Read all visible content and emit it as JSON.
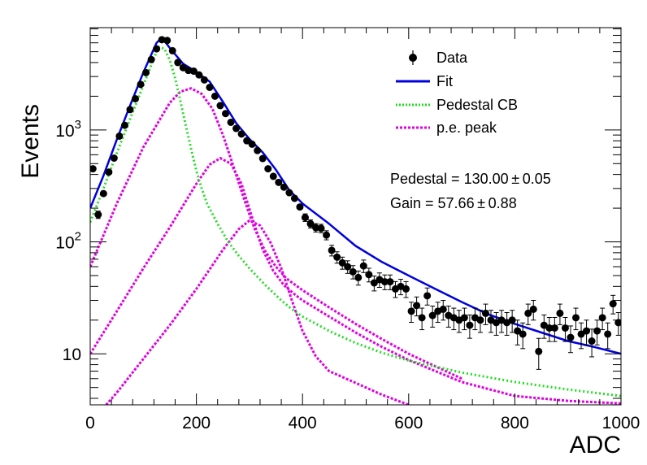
{
  "chart_data": {
    "type": "scatter",
    "title": "",
    "xlabel": "ADC",
    "ylabel": "Events",
    "xlim": [
      0,
      1000
    ],
    "ylim": [
      3.5,
      8200
    ],
    "log_y": true,
    "grid": false,
    "x_ticks": [
      {
        "value": 0,
        "label": "0"
      },
      {
        "value": 200,
        "label": "200"
      },
      {
        "value": 400,
        "label": "400"
      },
      {
        "value": 600,
        "label": "600"
      },
      {
        "value": 800,
        "label": "800"
      },
      {
        "value": 1000,
        "label": "1000"
      }
    ],
    "y_ticks": [
      {
        "value": 10,
        "base": "10",
        "exp": ""
      },
      {
        "value": 100,
        "base": "10",
        "exp": "2"
      },
      {
        "value": 1000,
        "base": "10",
        "exp": "3"
      }
    ],
    "legend": {
      "position": "top-right",
      "entries": [
        {
          "label": "Data",
          "kind": "marker"
        },
        {
          "label": "Fit",
          "kind": "fit"
        },
        {
          "label": "Pedestal CB",
          "kind": "pedestal"
        },
        {
          "label": "p.e. peak",
          "kind": "pe"
        }
      ]
    },
    "annotations": [
      "Pedestal = 130.00 ± 0.05",
      "Gain = 57.66 ± 0.88"
    ],
    "colors": {
      "data": "#000000",
      "fit": "#0000e0",
      "pedestal": "#22dd22",
      "pe": "#e000e0"
    },
    "series": [
      {
        "name": "Data",
        "kind": "data",
        "x": [
          5,
          15,
          25,
          35,
          45,
          55,
          65,
          75,
          85,
          95,
          105,
          115,
          125,
          135,
          145,
          155,
          165,
          175,
          185,
          195,
          205,
          215,
          225,
          235,
          245,
          255,
          265,
          275,
          285,
          295,
          305,
          315,
          325,
          335,
          345,
          355,
          365,
          375,
          385,
          395,
          405,
          415,
          425,
          435,
          445,
          455,
          465,
          475,
          485,
          495,
          505,
          515,
          525,
          535,
          545,
          555,
          565,
          575,
          585,
          595,
          605,
          615,
          625,
          635,
          645,
          655,
          665,
          675,
          685,
          695,
          705,
          715,
          725,
          735,
          745,
          755,
          765,
          775,
          785,
          795,
          805,
          815,
          825,
          835,
          845,
          855,
          865,
          875,
          885,
          895,
          905,
          915,
          925,
          935,
          945,
          955,
          965,
          975,
          985,
          995
        ],
        "y": [
          450,
          175,
          270,
          420,
          560,
          880,
          1100,
          1520,
          1900,
          2550,
          3250,
          4250,
          5300,
          6400,
          6300,
          5100,
          4000,
          3600,
          3400,
          3350,
          3100,
          2800,
          2400,
          2000,
          1650,
          1400,
          1170,
          1030,
          920,
          800,
          745,
          655,
          555,
          450,
          385,
          340,
          308,
          275,
          245,
          205,
          165,
          145,
          134,
          132,
          115,
          84,
          73,
          65,
          60,
          54,
          48,
          61,
          51,
          43,
          46,
          44,
          44,
          38,
          40,
          38,
          24,
          27,
          21,
          33,
          22,
          24,
          25,
          22,
          21,
          20,
          21,
          18,
          21,
          20,
          23,
          20,
          19,
          20,
          19,
          20,
          16,
          15,
          23,
          25,
          10.5,
          18,
          17,
          17,
          23,
          17,
          14,
          21,
          15,
          16,
          13,
          16,
          21,
          15,
          28,
          19
        ]
      },
      {
        "name": "Fit",
        "kind": "fit",
        "x": [
          0,
          25,
          50,
          75,
          100,
          125,
          135,
          150,
          175,
          200,
          225,
          250,
          275,
          300,
          325,
          350,
          375,
          400,
          450,
          500,
          550,
          600,
          650,
          700,
          750,
          800,
          850,
          900,
          950,
          1000
        ],
        "y": [
          200,
          390,
          820,
          1650,
          3250,
          6000,
          6700,
          5400,
          3900,
          3300,
          2700,
          1780,
          1150,
          830,
          630,
          440,
          290,
          220,
          145,
          92,
          66,
          50,
          38,
          29,
          22.5,
          18.5,
          15.5,
          13,
          11.5,
          10
        ]
      },
      {
        "name": "Pedestal CB",
        "kind": "pedestal",
        "x": [
          0,
          25,
          50,
          75,
          100,
          125,
          130,
          140,
          150,
          160,
          170,
          180,
          190,
          200,
          210,
          220,
          240,
          260,
          280,
          300,
          320,
          330,
          340,
          360,
          380,
          400,
          450,
          500,
          550,
          600,
          700,
          800,
          900,
          1000
        ],
        "y": [
          150,
          300,
          620,
          1250,
          2500,
          5000,
          5500,
          5300,
          4200,
          2900,
          1800,
          1100,
          680,
          430,
          300,
          220,
          145,
          100,
          75,
          58,
          46,
          41,
          37,
          30,
          25,
          21.5,
          16,
          12.5,
          10.2,
          8.7,
          6.8,
          5.6,
          4.8,
          4.2
        ]
      },
      {
        "name": "p.e. peak 1",
        "kind": "pe",
        "x": [
          0,
          50,
          100,
          150,
          170,
          190,
          210,
          230,
          250,
          270,
          290,
          310,
          330,
          350,
          370,
          400,
          450,
          500,
          550,
          600,
          700
        ],
        "y": [
          60,
          220,
          700,
          1750,
          2200,
          2350,
          2100,
          1550,
          900,
          470,
          240,
          130,
          82,
          60,
          47,
          37,
          26,
          18.5,
          13.5,
          10,
          6
        ]
      },
      {
        "name": "p.e. peak 2",
        "kind": "pe",
        "x": [
          0,
          50,
          100,
          150,
          200,
          225,
          245,
          265,
          285,
          305,
          325,
          345,
          365,
          385,
          400,
          450,
          500,
          550,
          600,
          700,
          800,
          900,
          1000
        ],
        "y": [
          10,
          24,
          58,
          135,
          330,
          490,
          560,
          500,
          330,
          165,
          85,
          55,
          41,
          34,
          30,
          21.5,
          15.5,
          11.5,
          8.8,
          5.6,
          4.2,
          3.8,
          3.6
        ]
      },
      {
        "name": "p.e. peak 3",
        "kind": "pe",
        "x": [
          30,
          50,
          100,
          150,
          200,
          250,
          280,
          300,
          320,
          340,
          360,
          380,
          400,
          425,
          450,
          500,
          550,
          600
        ],
        "y": [
          3.5,
          4.5,
          9,
          18,
          38,
          85,
          130,
          155,
          140,
          98,
          58,
          30,
          16,
          9.5,
          7,
          5.5,
          4.3,
          3.5
        ]
      }
    ]
  }
}
